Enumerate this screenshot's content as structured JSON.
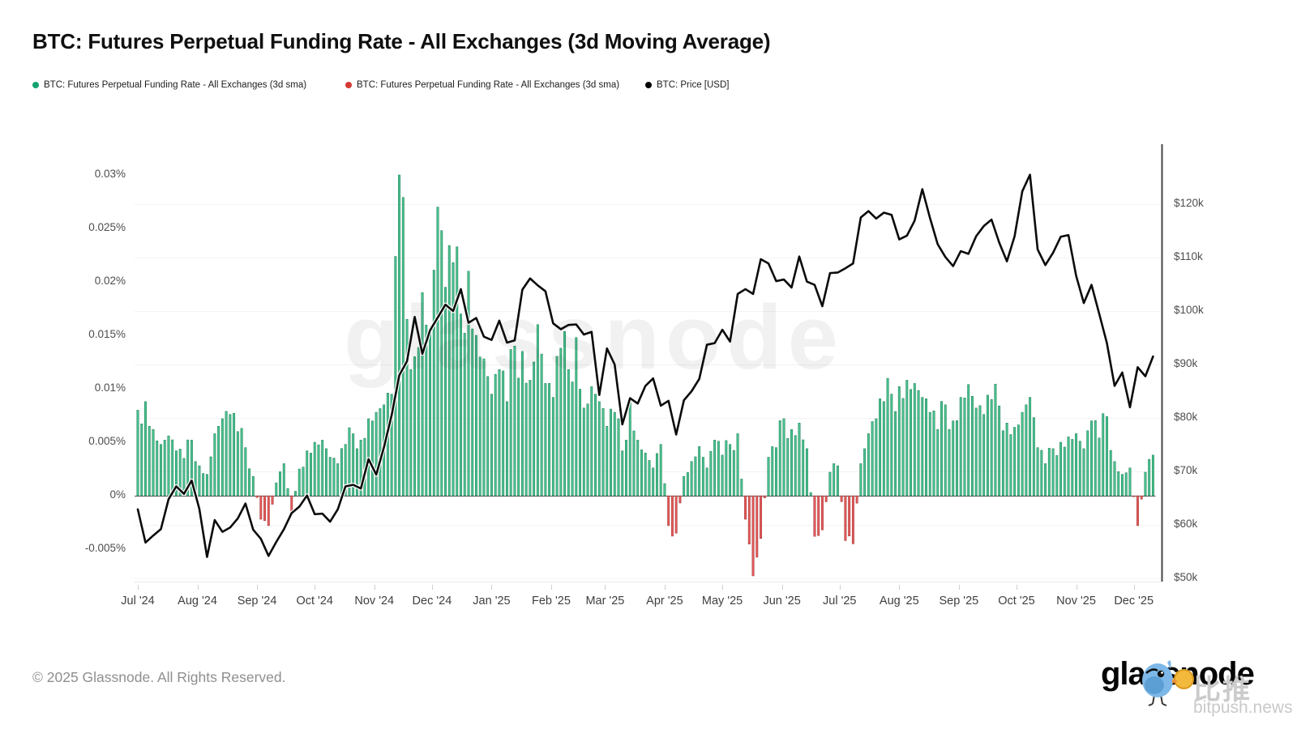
{
  "header": {
    "title": "BTC: Futures Perpetual Funding Rate - All Exchanges (3d Moving Average)"
  },
  "legend": {
    "items": [
      {
        "label": "BTC: Futures Perpetual Funding Rate - All Exchanges (3d sma)",
        "color": "#12a370"
      },
      {
        "label": "BTC: Futures Perpetual Funding Rate - All Exchanges (3d sma)",
        "color": "#d63a32"
      },
      {
        "label": "BTC: Price [USD]",
        "color": "#000000"
      }
    ]
  },
  "watermark": {
    "center_text": "glassnode"
  },
  "footer": {
    "copyright": "© 2025 Glassnode. All Rights Reserved.",
    "logo_text": "glassnode",
    "watermark_cn": "比推",
    "watermark_en": "bitpush.news"
  },
  "colors": {
    "bar_positive": "#4ac28f",
    "bar_positive_edge": "#157a50",
    "bar_negative": "#e15a5a",
    "bar_negative_edge": "#a83232",
    "price_line": "#0b0b0b",
    "axis_line": "#474747",
    "grid_faint": "#f3f3f3",
    "zero_line": "#555555"
  },
  "chart_data": {
    "type": "combo",
    "title": "BTC: Futures Perpetual Funding Rate - All Exchanges (3d Moving Average)",
    "x": {
      "start_date": "2024-07-01",
      "step_days": 4,
      "months": [
        {
          "label": "Jul '24",
          "day": 0
        },
        {
          "label": "Aug '24",
          "day": 31
        },
        {
          "label": "Sep '24",
          "day": 62
        },
        {
          "label": "Oct '24",
          "day": 92
        },
        {
          "label": "Nov '24",
          "day": 123
        },
        {
          "label": "Dec '24",
          "day": 153
        },
        {
          "label": "Jan '25",
          "day": 184
        },
        {
          "label": "Feb '25",
          "day": 215
        },
        {
          "label": "Mar '25",
          "day": 243
        },
        {
          "label": "Apr '25",
          "day": 274
        },
        {
          "label": "May '25",
          "day": 304
        },
        {
          "label": "Jun '25",
          "day": 335
        },
        {
          "label": "Jul '25",
          "day": 365
        },
        {
          "label": "Aug '25",
          "day": 396
        },
        {
          "label": "Sep '25",
          "day": 427
        },
        {
          "label": "Oct '25",
          "day": 457
        },
        {
          "label": "Nov '25",
          "day": 488
        },
        {
          "label": "Dec '25",
          "day": 518
        }
      ]
    },
    "left_axis": {
      "unit": "%",
      "ticks": [
        {
          "label": "0.03%",
          "value": 0.03
        },
        {
          "label": "0.025%",
          "value": 0.025
        },
        {
          "label": "0.02%",
          "value": 0.02
        },
        {
          "label": "0.015%",
          "value": 0.015
        },
        {
          "label": "0.01%",
          "value": 0.01
        },
        {
          "label": "0.005%",
          "value": 0.005
        },
        {
          "label": "0%",
          "value": 0
        },
        {
          "label": "-0.005%",
          "value": -0.005
        }
      ]
    },
    "right_axis": {
      "unit": "USD",
      "ticks": [
        {
          "label": "$120k",
          "value": 120
        },
        {
          "label": "$110k",
          "value": 110
        },
        {
          "label": "$100k",
          "value": 100
        },
        {
          "label": "$90k",
          "value": 90
        },
        {
          "label": "$80k",
          "value": 80
        },
        {
          "label": "$70k",
          "value": 70
        },
        {
          "label": "$60k",
          "value": 60
        },
        {
          "label": "$50k",
          "value": 50
        }
      ]
    },
    "series": [
      {
        "name": "BTC: Futures Perpetual Funding Rate - All Exchanges (3d sma)",
        "type": "bar",
        "axis": "left",
        "unit": "%",
        "values": [
          0.008,
          0.0088,
          0.0062,
          0.0048,
          0.0056,
          0.0042,
          0.0035,
          0.0052,
          0.0028,
          0.002,
          0.0058,
          0.0072,
          0.0076,
          0.006,
          0.0045,
          0.0018,
          -0.0022,
          -0.0028,
          0.0012,
          0.003,
          -0.0018,
          0.0025,
          0.0042,
          0.005,
          0.0052,
          0.0036,
          0.003,
          0.0048,
          0.0058,
          0.0052,
          0.0072,
          0.0078,
          0.0085,
          0.0095,
          0.03,
          0.0165,
          0.013,
          0.019,
          0.0152,
          0.027,
          0.0195,
          0.0218,
          0.017,
          0.021,
          0.015,
          0.0128,
          0.0095,
          0.0118,
          0.0088,
          0.014,
          0.0135,
          0.0108,
          0.016,
          0.0105,
          0.0092,
          0.0138,
          0.0118,
          0.0148,
          0.0082,
          0.0102,
          0.0088,
          0.0065,
          0.0078,
          0.0042,
          0.0088,
          0.0052,
          0.004,
          0.0026,
          0.0048,
          -0.0028,
          -0.0035,
          0.0018,
          0.0032,
          0.0046,
          0.0026,
          0.0052,
          0.0038,
          0.0048,
          0.0058,
          -0.0022,
          -0.0075,
          -0.004,
          0.0036,
          0.0045,
          0.0072,
          0.0062,
          0.0068,
          0.0044,
          -0.0038,
          -0.0032,
          0.0022,
          0.0028,
          -0.0042,
          -0.0045,
          0.003,
          0.0058,
          0.0072,
          0.0088,
          0.0095,
          0.0102,
          0.0108,
          0.0105,
          0.0092,
          0.0078,
          0.0062,
          0.0085,
          0.007,
          0.0092,
          0.0104,
          0.0082,
          0.0076,
          0.009,
          0.0084,
          0.0068,
          0.0064,
          0.0078,
          0.0092,
          0.0045,
          0.003,
          0.0044,
          0.005,
          0.0055,
          0.0058,
          0.0044,
          0.007,
          0.0054,
          0.0074,
          0.0032,
          0.002,
          0.0026,
          -0.0028,
          0.0022,
          0.0038
        ]
      },
      {
        "name": "BTC: Price [USD]",
        "type": "line",
        "axis": "right",
        "unit": "USD thousands",
        "values": [
          62.9,
          56.7,
          58.0,
          59.2,
          64.8,
          67.2,
          65.8,
          68.3,
          63.0,
          54.0,
          60.9,
          58.7,
          59.5,
          61.2,
          64.0,
          59.1,
          57.4,
          54.2,
          56.8,
          59.2,
          62.2,
          63.4,
          65.5,
          62.0,
          62.1,
          60.6,
          62.9,
          67.2,
          67.5,
          66.8,
          72.3,
          69.4,
          74.5,
          80.5,
          88.0,
          90.6,
          98.9,
          92.0,
          96.4,
          98.8,
          101.2,
          100.0,
          104.1,
          97.8,
          98.7,
          95.2,
          94.6,
          98.2,
          94.1,
          94.5,
          104.0,
          106.1,
          104.8,
          103.7,
          97.7,
          96.6,
          97.4,
          97.5,
          95.6,
          96.1,
          84.3,
          93.0,
          90.0,
          78.8,
          83.7,
          82.7,
          86.0,
          87.4,
          82.3,
          83.2,
          76.9,
          83.3,
          85.0,
          87.3,
          93.7,
          94.0,
          96.5,
          94.3,
          103.2,
          104.1,
          103.2,
          109.7,
          108.9,
          105.6,
          105.9,
          104.4,
          110.2,
          105.5,
          104.9,
          100.9,
          107.1,
          107.2,
          108.0,
          108.9,
          117.5,
          118.7,
          117.3,
          118.4,
          118.0,
          113.4,
          114.1,
          116.9,
          122.8,
          117.4,
          112.5,
          110.1,
          108.4,
          111.2,
          110.7,
          114.0,
          115.9,
          117.1,
          112.8,
          109.3,
          114.0,
          122.4,
          125.5,
          111.5,
          108.6,
          110.9,
          113.9,
          114.2,
          106.6,
          101.5,
          104.9,
          99.5,
          94.0,
          86.0,
          88.5,
          82.0,
          89.5,
          87.8,
          91.5
        ]
      }
    ]
  }
}
